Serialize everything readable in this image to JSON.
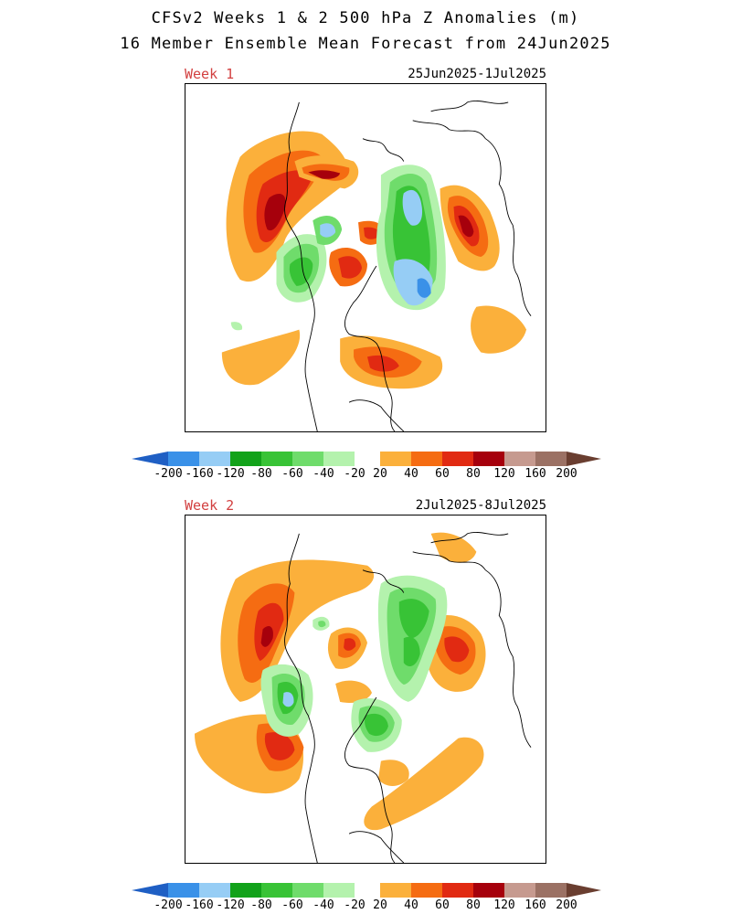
{
  "title": {
    "line1": "CFSv2 Weeks 1 & 2 500 hPa Z Anomalies (m)",
    "line2": "16 Member Ensemble Mean Forecast from 24Jun2025"
  },
  "panels": [
    {
      "week": "Week 1",
      "dates": "25Jun2025-1Jul2025"
    },
    {
      "week": "Week 2",
      "dates": "2Jul2025-8Jul2025"
    }
  ],
  "colorbar": {
    "levels": [
      "-200",
      "-160",
      "-120",
      "-80",
      "-60",
      "-40",
      "-20",
      "20",
      "40",
      "60",
      "80",
      "120",
      "160",
      "200"
    ],
    "colors": {
      "below_-200": "#1f5fc4",
      "-200_-160": "#3a91e8",
      "-160_-120": "#96cdf5",
      "-120_-80": "#12a21a",
      "-80_-60": "#38c336",
      "-60_-40": "#6fdc6b",
      "-40_-20": "#b4f2ad",
      "-20_20": "#ffffff",
      "20_40": "#fbb03b",
      "40_60": "#f56c12",
      "60_80": "#e12a12",
      "80_120": "#a6000c",
      "120_160": "#c69a8f",
      "160_200": "#9b7164",
      "above_200": "#6a3e30"
    }
  }
}
